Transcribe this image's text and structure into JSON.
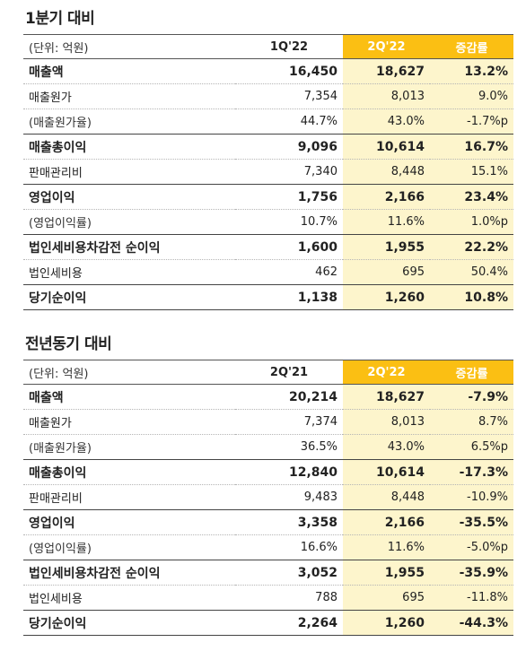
{
  "sections": [
    {
      "title": "1분기 대비",
      "header": [
        "(단위: 억원)",
        "1Q'22",
        "2Q'22",
        "증감률"
      ],
      "rows": [
        {
          "label": "매출액",
          "v1": "16,450",
          "v2": "18,627",
          "v3": "13.2%"
        },
        {
          "label": "매출원가",
          "v1": "7,354",
          "v2": "8,013",
          "v3": "9.0%"
        },
        {
          "label": " (매출원가율)",
          "v1": "44.7%",
          "v2": "43.0%",
          "v3": "-1.7%p"
        },
        {
          "label": "매출총이익",
          "v1": "9,096",
          "v2": "10,614",
          "v3": "16.7%"
        },
        {
          "label": "판매관리비",
          "v1": "7,340",
          "v2": "8,448",
          "v3": "15.1%"
        },
        {
          "label": "영업이익",
          "v1": "1,756",
          "v2": "2,166",
          "v3": "23.4%"
        },
        {
          "label": " (영업이익률)",
          "v1": "10.7%",
          "v2": "11.6%",
          "v3": "1.0%p"
        },
        {
          "label": "법인세비용차감전 순이익",
          "v1": "1,600",
          "v2": "1,955",
          "v3": "22.2%"
        },
        {
          "label": "법인세비용",
          "v1": "462",
          "v2": "695",
          "v3": "50.4%"
        },
        {
          "label": "당기순이익",
          "v1": "1,138",
          "v2": "1,260",
          "v3": "10.8%"
        }
      ]
    },
    {
      "title": "전년동기 대비",
      "header": [
        "(단위: 억원)",
        "2Q'21",
        "2Q'22",
        "증감률"
      ],
      "rows": [
        {
          "label": "매출액",
          "v1": "20,214",
          "v2": "18,627",
          "v3": "-7.9%"
        },
        {
          "label": "매출원가",
          "v1": "7,374",
          "v2": "8,013",
          "v3": "8.7%"
        },
        {
          "label": " (매출원가율)",
          "v1": "36.5%",
          "v2": "43.0%",
          "v3": "6.5%p"
        },
        {
          "label": "매출총이익",
          "v1": "12,840",
          "v2": "10,614",
          "v3": "-17.3%"
        },
        {
          "label": "판매관리비",
          "v1": "9,483",
          "v2": "8,448",
          "v3": "-10.9%"
        },
        {
          "label": "영업이익",
          "v1": "3,358",
          "v2": "2,166",
          "v3": "-35.5%"
        },
        {
          "label": " (영업이익률)",
          "v1": "16.6%",
          "v2": "11.6%",
          "v3": "-5.0%p"
        },
        {
          "label": "법인세비용차감전 순이익",
          "v1": "3,052",
          "v2": "1,955",
          "v3": "-35.9%"
        },
        {
          "label": "법인세비용",
          "v1": "788",
          "v2": "695",
          "v3": "-11.8%"
        },
        {
          "label": "당기순이익",
          "v1": "2,264",
          "v2": "1,260",
          "v3": "-44.3%"
        }
      ]
    }
  ],
  "colors": {
    "accent": "#fbbf13",
    "highlight": "#fdf5cc"
  }
}
